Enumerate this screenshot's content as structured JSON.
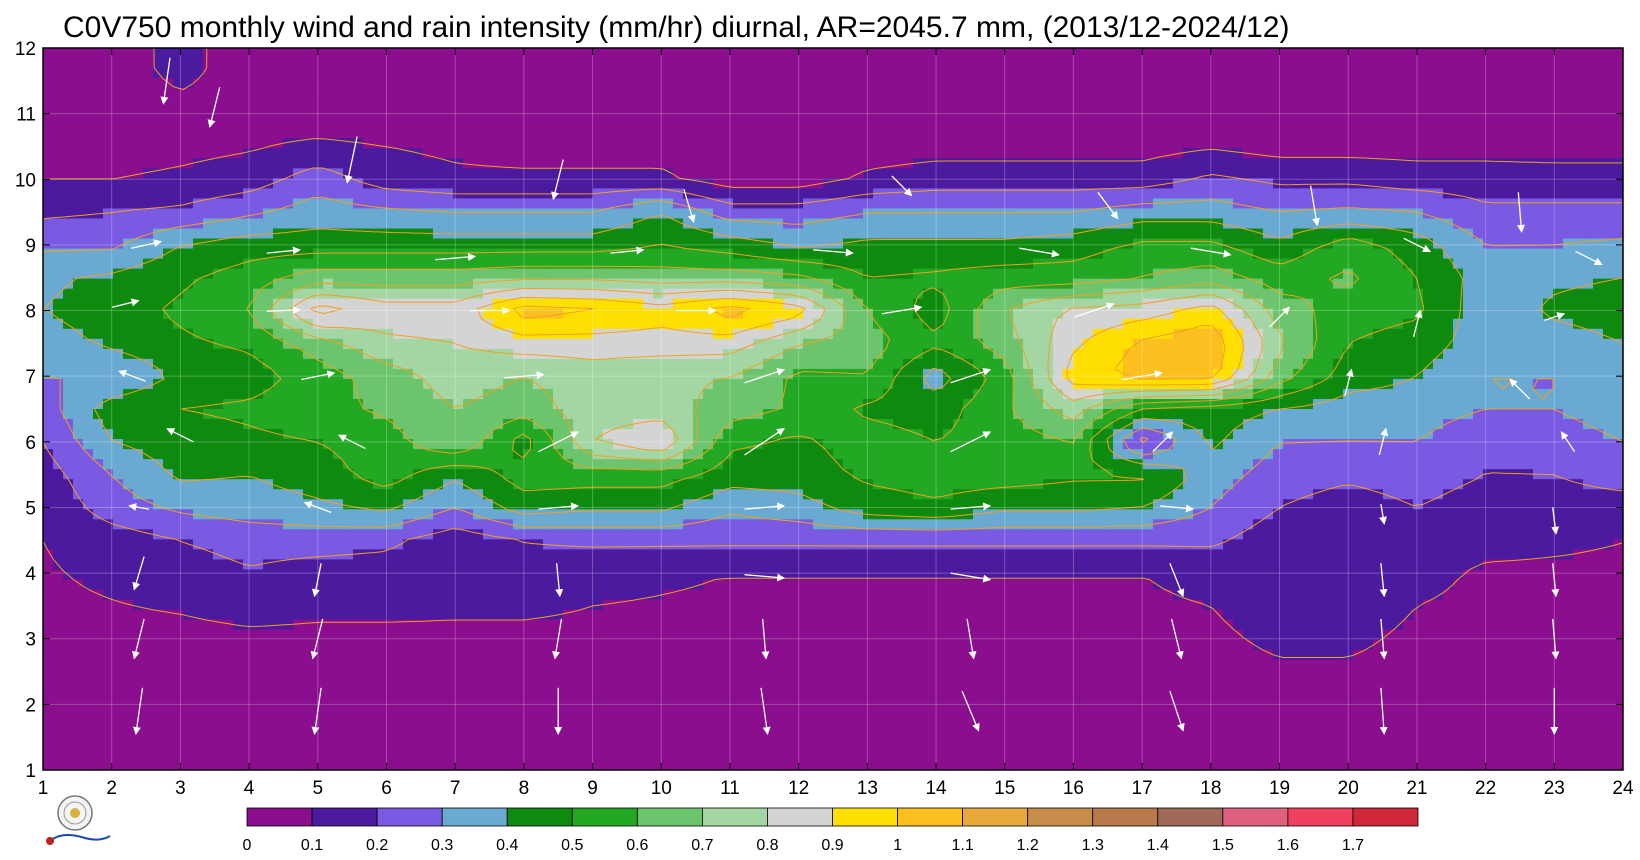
{
  "chart_data": {
    "type": "heatmap",
    "title": "C0V750 monthly wind and rain intensity (mm/hr) diurnal, AR=2045.7 mm, (2013/12-2024/12)",
    "xlabel": "",
    "ylabel": "",
    "x_ticks": [
      "1",
      "2",
      "3",
      "4",
      "5",
      "6",
      "7",
      "8",
      "9",
      "10",
      "11",
      "12",
      "13",
      "14",
      "15",
      "16",
      "17",
      "18",
      "19",
      "20",
      "21",
      "22",
      "23",
      "24"
    ],
    "y_ticks": [
      "1",
      "2",
      "3",
      "4",
      "5",
      "6",
      "7",
      "8",
      "9",
      "10",
      "11",
      "12"
    ],
    "xlim": [
      1,
      24
    ],
    "ylim": [
      1,
      12
    ],
    "x": [
      1,
      2,
      3,
      4,
      5,
      6,
      7,
      8,
      9,
      10,
      11,
      12,
      13,
      14,
      15,
      16,
      17,
      18,
      19,
      20,
      21,
      22,
      23,
      24
    ],
    "y": [
      1.3,
      2,
      3,
      4,
      4.5,
      5,
      5.5,
      6,
      6.5,
      7,
      7.5,
      8,
      8.5,
      9,
      9.5,
      10,
      10.5,
      11,
      11.7
    ],
    "z": [
      [
        0.03,
        0.03,
        0.03,
        0.03,
        0.03,
        0.03,
        0.03,
        0.03,
        0.03,
        0.03,
        0.03,
        0.03,
        0.03,
        0.03,
        0.03,
        0.03,
        0.03,
        0.03,
        0.03,
        0.03,
        0.03,
        0.03,
        0.03,
        0.03
      ],
      [
        0.05,
        0.05,
        0.05,
        0.05,
        0.05,
        0.05,
        0.05,
        0.05,
        0.05,
        0.05,
        0.05,
        0.05,
        0.05,
        0.05,
        0.05,
        0.05,
        0.05,
        0.05,
        0.05,
        0.05,
        0.05,
        0.05,
        0.05,
        0.05
      ],
      [
        0.07,
        0.07,
        0.07,
        0.08,
        0.08,
        0.08,
        0.08,
        0.08,
        0.08,
        0.08,
        0.08,
        0.08,
        0.08,
        0.08,
        0.08,
        0.08,
        0.08,
        0.08,
        0.12,
        0.12,
        0.08,
        0.08,
        0.08,
        0.08
      ],
      [
        0.09,
        0.12,
        0.15,
        0.19,
        0.16,
        0.16,
        0.15,
        0.15,
        0.12,
        0.11,
        0.1,
        0.1,
        0.1,
        0.1,
        0.1,
        0.1,
        0.1,
        0.12,
        0.18,
        0.18,
        0.12,
        0.09,
        0.09,
        0.09
      ],
      [
        0.1,
        0.15,
        0.2,
        0.24,
        0.24,
        0.22,
        0.14,
        0.2,
        0.22,
        0.22,
        0.22,
        0.22,
        0.22,
        0.22,
        0.22,
        0.22,
        0.22,
        0.22,
        0.14,
        0.14,
        0.14,
        0.12,
        0.11,
        0.1
      ],
      [
        0.12,
        0.25,
        0.32,
        0.35,
        0.38,
        0.42,
        0.3,
        0.45,
        0.42,
        0.42,
        0.32,
        0.36,
        0.45,
        0.48,
        0.42,
        0.42,
        0.4,
        0.3,
        0.2,
        0.15,
        0.2,
        0.15,
        0.15,
        0.15
      ],
      [
        0.15,
        0.3,
        0.42,
        0.4,
        0.45,
        0.55,
        0.42,
        0.55,
        0.55,
        0.55,
        0.45,
        0.45,
        0.52,
        0.55,
        0.55,
        0.52,
        0.52,
        0.35,
        0.25,
        0.22,
        0.25,
        0.2,
        0.2,
        0.25
      ],
      [
        0.2,
        0.4,
        0.45,
        0.48,
        0.5,
        0.55,
        0.7,
        0.45,
        0.8,
        0.9,
        0.52,
        0.48,
        0.55,
        0.5,
        0.55,
        0.6,
        0.15,
        0.42,
        0.3,
        0.3,
        0.3,
        0.22,
        0.25,
        0.3
      ],
      [
        0.25,
        0.45,
        0.5,
        0.52,
        0.56,
        0.62,
        0.7,
        0.65,
        0.75,
        0.75,
        0.65,
        0.58,
        0.48,
        0.45,
        0.58,
        0.75,
        0.5,
        0.45,
        0.4,
        0.35,
        0.35,
        0.3,
        0.3,
        0.35
      ],
      [
        0.3,
        0.3,
        0.42,
        0.45,
        0.55,
        0.65,
        0.75,
        0.7,
        0.75,
        0.72,
        0.7,
        0.58,
        0.6,
        0.35,
        0.55,
        0.95,
        1.05,
        1.05,
        0.65,
        0.45,
        0.4,
        0.3,
        0.3,
        0.35
      ],
      [
        0.35,
        0.42,
        0.48,
        0.52,
        0.65,
        0.78,
        0.8,
        0.85,
        0.85,
        0.85,
        0.85,
        0.7,
        0.65,
        0.52,
        0.65,
        0.88,
        1.02,
        1.08,
        0.72,
        0.5,
        0.45,
        0.35,
        0.35,
        0.4
      ],
      [
        0.4,
        0.45,
        0.52,
        0.6,
        0.95,
        0.85,
        0.85,
        1.05,
        1.02,
        0.95,
        1.05,
        0.95,
        0.6,
        0.45,
        0.7,
        0.82,
        0.85,
        0.95,
        0.65,
        0.55,
        0.52,
        0.33,
        0.42,
        0.45
      ],
      [
        0.38,
        0.42,
        0.48,
        0.55,
        0.65,
        0.65,
        0.65,
        0.68,
        0.68,
        0.65,
        0.65,
        0.62,
        0.5,
        0.52,
        0.55,
        0.55,
        0.6,
        0.65,
        0.55,
        0.62,
        0.5,
        0.35,
        0.38,
        0.4
      ],
      [
        0.28,
        0.28,
        0.4,
        0.45,
        0.45,
        0.45,
        0.45,
        0.45,
        0.45,
        0.5,
        0.45,
        0.38,
        0.42,
        0.42,
        0.42,
        0.45,
        0.52,
        0.52,
        0.42,
        0.55,
        0.45,
        0.3,
        0.3,
        0.32
      ],
      [
        0.18,
        0.2,
        0.22,
        0.28,
        0.35,
        0.32,
        0.3,
        0.3,
        0.3,
        0.4,
        0.25,
        0.25,
        0.3,
        0.3,
        0.3,
        0.3,
        0.35,
        0.35,
        0.3,
        0.32,
        0.3,
        0.22,
        0.22,
        0.22
      ],
      [
        0.1,
        0.1,
        0.12,
        0.15,
        0.25,
        0.15,
        0.12,
        0.12,
        0.12,
        0.12,
        0.05,
        0.05,
        0.12,
        0.15,
        0.15,
        0.15,
        0.15,
        0.22,
        0.18,
        0.18,
        0.15,
        0.15,
        0.15,
        0.15
      ],
      [
        0.05,
        0.05,
        0.07,
        0.09,
        0.12,
        0.1,
        0.08,
        0.06,
        0.06,
        0.06,
        0.05,
        0.05,
        0.05,
        0.06,
        0.06,
        0.06,
        0.06,
        0.09,
        0.06,
        0.06,
        0.06,
        0.06,
        0.05,
        0.05
      ],
      [
        0.03,
        0.03,
        0.05,
        0.05,
        0.04,
        0.03,
        0.03,
        0.03,
        0.03,
        0.03,
        0.03,
        0.03,
        0.03,
        0.03,
        0.03,
        0.03,
        0.03,
        0.03,
        0.03,
        0.03,
        0.03,
        0.03,
        0.03,
        0.03
      ],
      [
        0.02,
        0.02,
        0.15,
        0.02,
        0.02,
        0.02,
        0.02,
        0.02,
        0.02,
        0.02,
        0.02,
        0.02,
        0.02,
        0.02,
        0.02,
        0.02,
        0.02,
        0.02,
        0.02,
        0.02,
        0.02,
        0.02,
        0.02,
        0.02
      ]
    ],
    "colorbar": {
      "levels": [
        0,
        0.1,
        0.2,
        0.3,
        0.4,
        0.5,
        0.6,
        0.7,
        0.8,
        0.9,
        1,
        1.1,
        1.2,
        1.3,
        1.4,
        1.5,
        1.6,
        1.7
      ],
      "labels": [
        "0",
        "0.1",
        "0.2",
        "0.3",
        "0.4",
        "0.5",
        "0.6",
        "0.7",
        "0.8",
        "0.9",
        "1",
        "1.1",
        "1.2",
        "1.3",
        "1.4",
        "1.5",
        "1.6",
        "1.7"
      ],
      "colors": [
        "#8b0e8e",
        "#4b1a9e",
        "#7a5ae3",
        "#6aaad2",
        "#0e8a0e",
        "#22a822",
        "#6cc46c",
        "#a4d6a4",
        "#d4d4d4",
        "#ffdf00",
        "#fbbf1f",
        "#e8a83a",
        "#c88c4b",
        "#b87a4b",
        "#a06a5a",
        "#e06080",
        "#f04060",
        "#d02838"
      ]
    },
    "contour_color": "#f0a020",
    "arrow_color": "#ffffff",
    "grid": true,
    "wind_arrows": [
      [
        2.8,
        11.5,
        -0.1,
        -0.7
      ],
      [
        3.5,
        11.1,
        -0.15,
        -0.6
      ],
      [
        5.5,
        10.3,
        -0.15,
        -0.7
      ],
      [
        8.5,
        10.0,
        -0.15,
        -0.6
      ],
      [
        10.4,
        9.6,
        0.15,
        -0.5
      ],
      [
        13.5,
        9.9,
        0.3,
        -0.3
      ],
      [
        16.5,
        9.6,
        0.3,
        -0.4
      ],
      [
        19.5,
        9.6,
        0.1,
        -0.6
      ],
      [
        22.5,
        9.5,
        0.05,
        -0.6
      ],
      [
        2.5,
        9.0,
        0.45,
        0.1
      ],
      [
        4.5,
        8.9,
        0.5,
        0.05
      ],
      [
        7,
        8.8,
        0.6,
        0.05
      ],
      [
        9.5,
        8.9,
        0.5,
        0.05
      ],
      [
        12.5,
        8.9,
        0.6,
        -0.05
      ],
      [
        15.5,
        8.9,
        0.6,
        -0.1
      ],
      [
        18,
        8.9,
        0.6,
        -0.1
      ],
      [
        21,
        9.0,
        0.4,
        -0.2
      ],
      [
        23.5,
        8.8,
        0.4,
        -0.2
      ],
      [
        2.2,
        8.1,
        0.4,
        0.1
      ],
      [
        4.5,
        8.0,
        0.5,
        0.02
      ],
      [
        7.5,
        8.0,
        0.6,
        0.0
      ],
      [
        10.5,
        8.0,
        0.6,
        0.0
      ],
      [
        13.5,
        8.0,
        0.6,
        0.1
      ],
      [
        16.3,
        8.0,
        0.6,
        0.2
      ],
      [
        19,
        7.9,
        0.3,
        0.3
      ],
      [
        21,
        7.8,
        0.1,
        0.4
      ],
      [
        23,
        7.9,
        0.3,
        0.1
      ],
      [
        2.3,
        7.0,
        -0.4,
        0.15
      ],
      [
        5,
        7.0,
        0.5,
        0.1
      ],
      [
        8,
        7.0,
        0.6,
        0.05
      ],
      [
        11.5,
        7.0,
        0.6,
        0.2
      ],
      [
        14.5,
        7.0,
        0.6,
        0.2
      ],
      [
        17,
        7.0,
        0.6,
        0.1
      ],
      [
        20,
        6.9,
        0.1,
        0.4
      ],
      [
        22.5,
        6.8,
        -0.3,
        0.3
      ],
      [
        3,
        6.1,
        -0.4,
        0.2
      ],
      [
        5.5,
        6.0,
        -0.4,
        0.2
      ],
      [
        8.5,
        6.0,
        0.6,
        0.3
      ],
      [
        11.5,
        6.0,
        0.6,
        0.4
      ],
      [
        14.5,
        6.0,
        0.6,
        0.3
      ],
      [
        17.3,
        6.0,
        0.3,
        0.3
      ],
      [
        20.5,
        6.0,
        0.1,
        0.4
      ],
      [
        23.2,
        6.0,
        -0.2,
        0.3
      ],
      [
        2.4,
        5.0,
        -0.3,
        0.05
      ],
      [
        5,
        5.0,
        -0.4,
        0.15
      ],
      [
        8.5,
        5.0,
        0.6,
        0.05
      ],
      [
        11.5,
        5.0,
        0.6,
        0.05
      ],
      [
        14.5,
        5.0,
        0.6,
        0.05
      ],
      [
        17.5,
        5.0,
        0.5,
        -0.05
      ],
      [
        20.5,
        4.9,
        0.05,
        -0.3
      ],
      [
        23,
        4.8,
        0.05,
        -0.4
      ],
      [
        2.4,
        4.0,
        -0.15,
        -0.5
      ],
      [
        5,
        3.9,
        -0.1,
        -0.5
      ],
      [
        8.5,
        3.9,
        0.05,
        -0.5
      ],
      [
        11.5,
        3.95,
        0.6,
        -0.05
      ],
      [
        14.5,
        3.95,
        0.6,
        -0.1
      ],
      [
        17.5,
        3.9,
        0.2,
        -0.5
      ],
      [
        20.5,
        3.9,
        0.05,
        -0.5
      ],
      [
        23,
        3.9,
        0.05,
        -0.5
      ],
      [
        2.4,
        3.0,
        -0.15,
        -0.6
      ],
      [
        5,
        3.0,
        -0.15,
        -0.6
      ],
      [
        8.5,
        3.0,
        -0.1,
        -0.6
      ],
      [
        11.5,
        3.0,
        0.05,
        -0.6
      ],
      [
        14.5,
        3.0,
        0.1,
        -0.6
      ],
      [
        17.5,
        3.0,
        0.15,
        -0.6
      ],
      [
        20.5,
        3.0,
        0.05,
        -0.6
      ],
      [
        23,
        3.0,
        0.05,
        -0.6
      ],
      [
        2.4,
        1.9,
        -0.1,
        -0.7
      ],
      [
        5,
        1.9,
        -0.1,
        -0.7
      ],
      [
        8.5,
        1.9,
        0.0,
        -0.7
      ],
      [
        11.5,
        1.9,
        0.1,
        -0.7
      ],
      [
        14.5,
        1.9,
        0.25,
        -0.6
      ],
      [
        17.5,
        1.9,
        0.2,
        -0.6
      ],
      [
        20.5,
        1.9,
        0.05,
        -0.7
      ],
      [
        23,
        1.9,
        0.0,
        -0.7
      ]
    ]
  }
}
